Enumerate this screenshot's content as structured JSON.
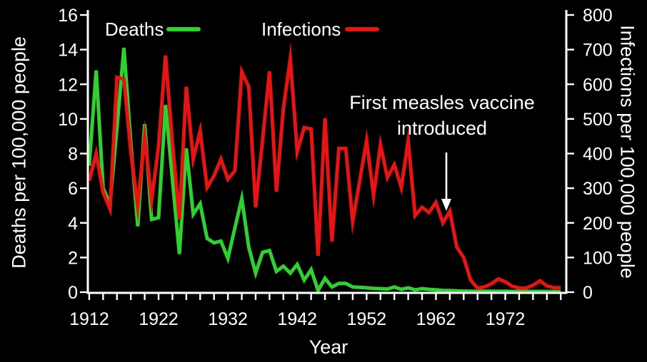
{
  "chart_data": {
    "type": "line",
    "title": "",
    "xlabel": "Year",
    "ylabel_left": "Deaths per 100,000 people",
    "ylabel_right": "Infections per 100,000 people",
    "background_color": "#000000",
    "axis_color": "#ffffff",
    "text_color": "#ffffff",
    "grid": false,
    "legend_position": "top-inside",
    "xlim": [
      1911.8,
      1980.8
    ],
    "ylim_left": [
      0,
      16
    ],
    "ylim_right": [
      0,
      800
    ],
    "yticks_left": [
      0,
      2,
      4,
      6,
      8,
      10,
      12,
      14,
      16
    ],
    "yticks_right": [
      0,
      100,
      200,
      300,
      400,
      500,
      600,
      700,
      800
    ],
    "xticks_labeled": [
      1912,
      1922,
      1932,
      1942,
      1952,
      1962,
      1972
    ],
    "xtick_minor_start": 1912,
    "xtick_minor_end": 1980,
    "xtick_minor_step": 2,
    "x": [
      1912,
      1913,
      1914,
      1915,
      1916,
      1917,
      1918,
      1919,
      1920,
      1921,
      1922,
      1923,
      1924,
      1925,
      1926,
      1927,
      1928,
      1929,
      1930,
      1931,
      1932,
      1933,
      1934,
      1935,
      1936,
      1937,
      1938,
      1939,
      1940,
      1941,
      1942,
      1943,
      1944,
      1945,
      1946,
      1947,
      1948,
      1949,
      1950,
      1951,
      1952,
      1953,
      1954,
      1955,
      1956,
      1957,
      1958,
      1959,
      1960,
      1961,
      1962,
      1963,
      1964,
      1965,
      1966,
      1967,
      1968,
      1969,
      1970,
      1971,
      1972,
      1973,
      1974,
      1975,
      1976,
      1977,
      1978,
      1979,
      1980
    ],
    "series": [
      {
        "name": "Deaths",
        "axis": "left",
        "color": "#2fd12f",
        "values": [
          7.3,
          12.8,
          6.0,
          5.1,
          9.5,
          14.1,
          8.6,
          3.8,
          9.7,
          4.2,
          4.3,
          10.8,
          6.5,
          2.2,
          8.3,
          4.5,
          5.1,
          3.1,
          2.85,
          2.95,
          1.95,
          3.7,
          5.4,
          2.6,
          1.1,
          2.3,
          2.4,
          1.2,
          1.5,
          1.1,
          1.6,
          0.7,
          1.3,
          0.1,
          0.8,
          0.3,
          0.5,
          0.5,
          0.3,
          0.28,
          0.25,
          0.22,
          0.2,
          0.18,
          0.3,
          0.16,
          0.25,
          0.13,
          0.2,
          0.16,
          0.13,
          0.1,
          0.09,
          0.07,
          0.06,
          0.05,
          0.05,
          0.05,
          0.05,
          0.05,
          0.05,
          0.04,
          0.04,
          0.04,
          0.04,
          0.04,
          0.04,
          0.03,
          0.03
        ]
      },
      {
        "name": "Infections",
        "axis": "right",
        "color": "#e81414",
        "values": [
          322,
          400,
          288,
          240,
          620,
          614,
          405,
          247,
          448,
          267,
          420,
          683,
          430,
          210,
          593,
          384,
          466,
          302,
          336,
          384,
          326,
          350,
          636,
          593,
          245,
          440,
          637,
          290,
          530,
          673,
          405,
          475,
          471,
          105,
          502,
          146,
          415,
          415,
          204,
          320,
          437,
          280,
          426,
          331,
          368,
          302,
          437,
          221,
          245,
          230,
          259,
          200,
          234,
          130,
          100,
          35,
          12,
          15,
          24,
          38,
          30,
          17,
          12,
          12,
          20,
          33,
          18,
          13,
          13
        ]
      }
    ],
    "annotation": {
      "text_line1": "First measles vaccine",
      "text_line2": "introduced",
      "arrow_points_at_year": 1963.5
    }
  }
}
